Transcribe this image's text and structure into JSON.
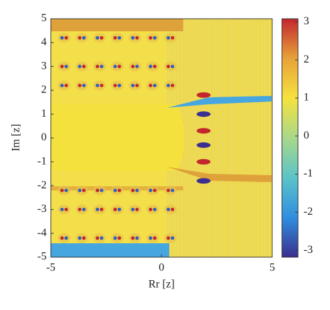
{
  "chart_data": {
    "type": "heatmap",
    "xlabel": "Rr [z]",
    "ylabel": "Im [z]",
    "xlim": [
      -5,
      5
    ],
    "ylim": [
      -5,
      5
    ],
    "xticks": [
      -5,
      0,
      5
    ],
    "yticks": [
      -5,
      -4,
      -3,
      -2,
      -1,
      0,
      1,
      2,
      3,
      4,
      5
    ],
    "colorbar": {
      "clim": [
        -3.18,
        3.08
      ],
      "ticks": [
        -3,
        -2,
        -1,
        0,
        1,
        2,
        3
      ],
      "colors": [
        "#3b2f8f",
        "#2f8fdf",
        "#5cc3c8",
        "#a8d88a",
        "#f5e23e",
        "#e8a23a",
        "#c2272d"
      ]
    }
  }
}
